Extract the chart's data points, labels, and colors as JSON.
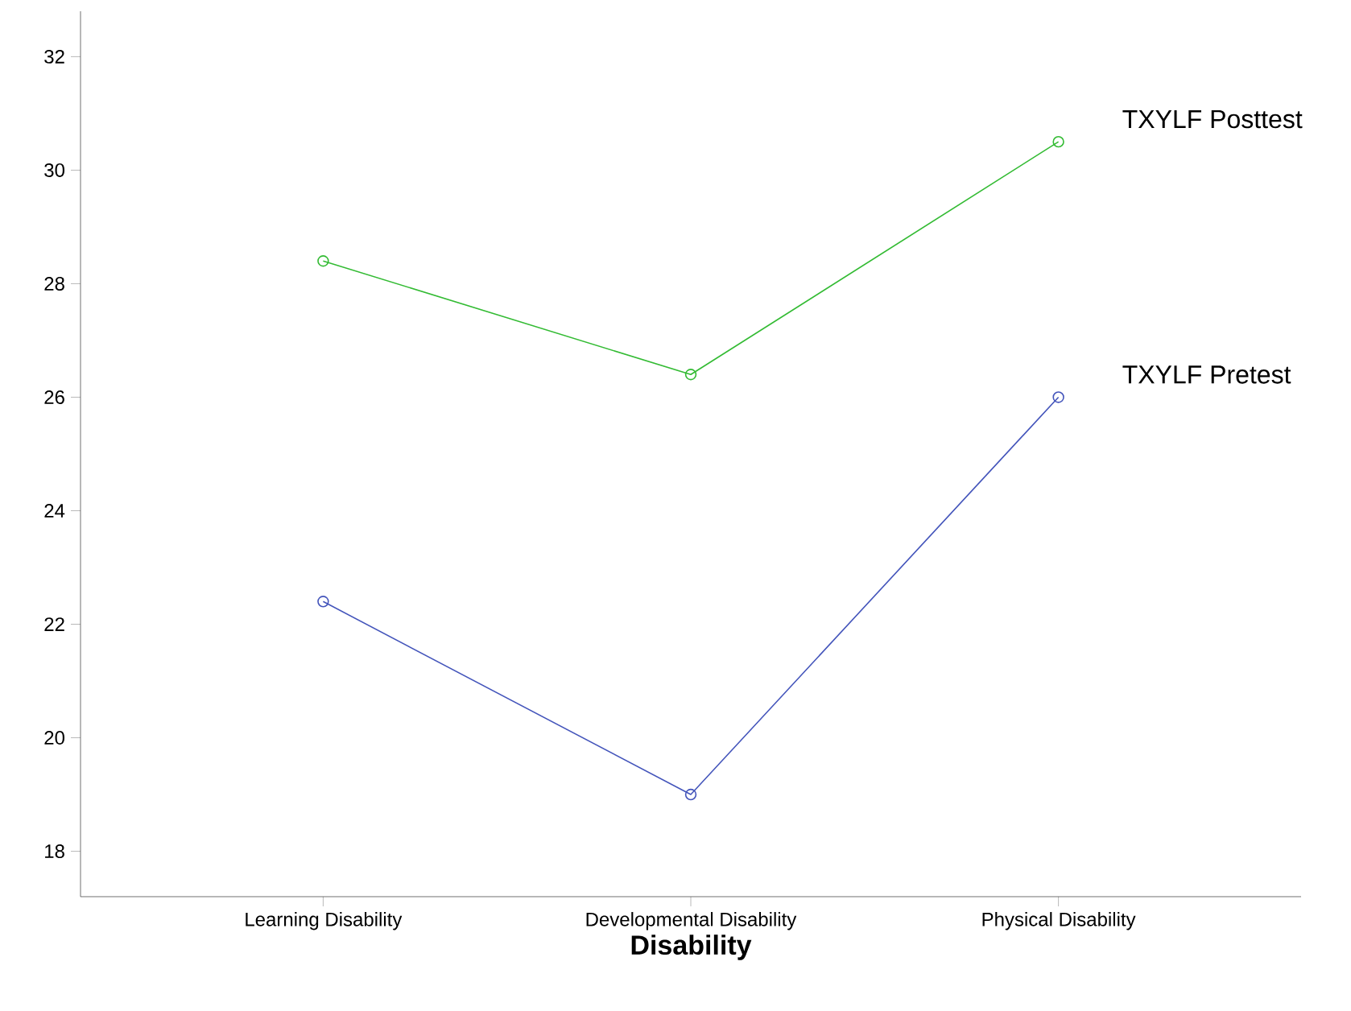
{
  "chart_data": {
    "type": "line",
    "xlabel": "Disability",
    "categories": [
      "Learning Disability",
      "Developmental Disability",
      "Physical Disability"
    ],
    "series": [
      {
        "name": "TXYLF Posttest",
        "color": "#33bb33",
        "values": [
          28.4,
          26.4,
          30.5
        ]
      },
      {
        "name": "TXYLF Pretest",
        "color": "#4455bb",
        "values": [
          22.4,
          19.0,
          26.0
        ]
      }
    ],
    "ylim": [
      17.2,
      32.8
    ],
    "yticks": [
      18,
      20,
      22,
      24,
      26,
      28,
      30,
      32
    ],
    "marker": "circle",
    "line_style": "solid"
  }
}
